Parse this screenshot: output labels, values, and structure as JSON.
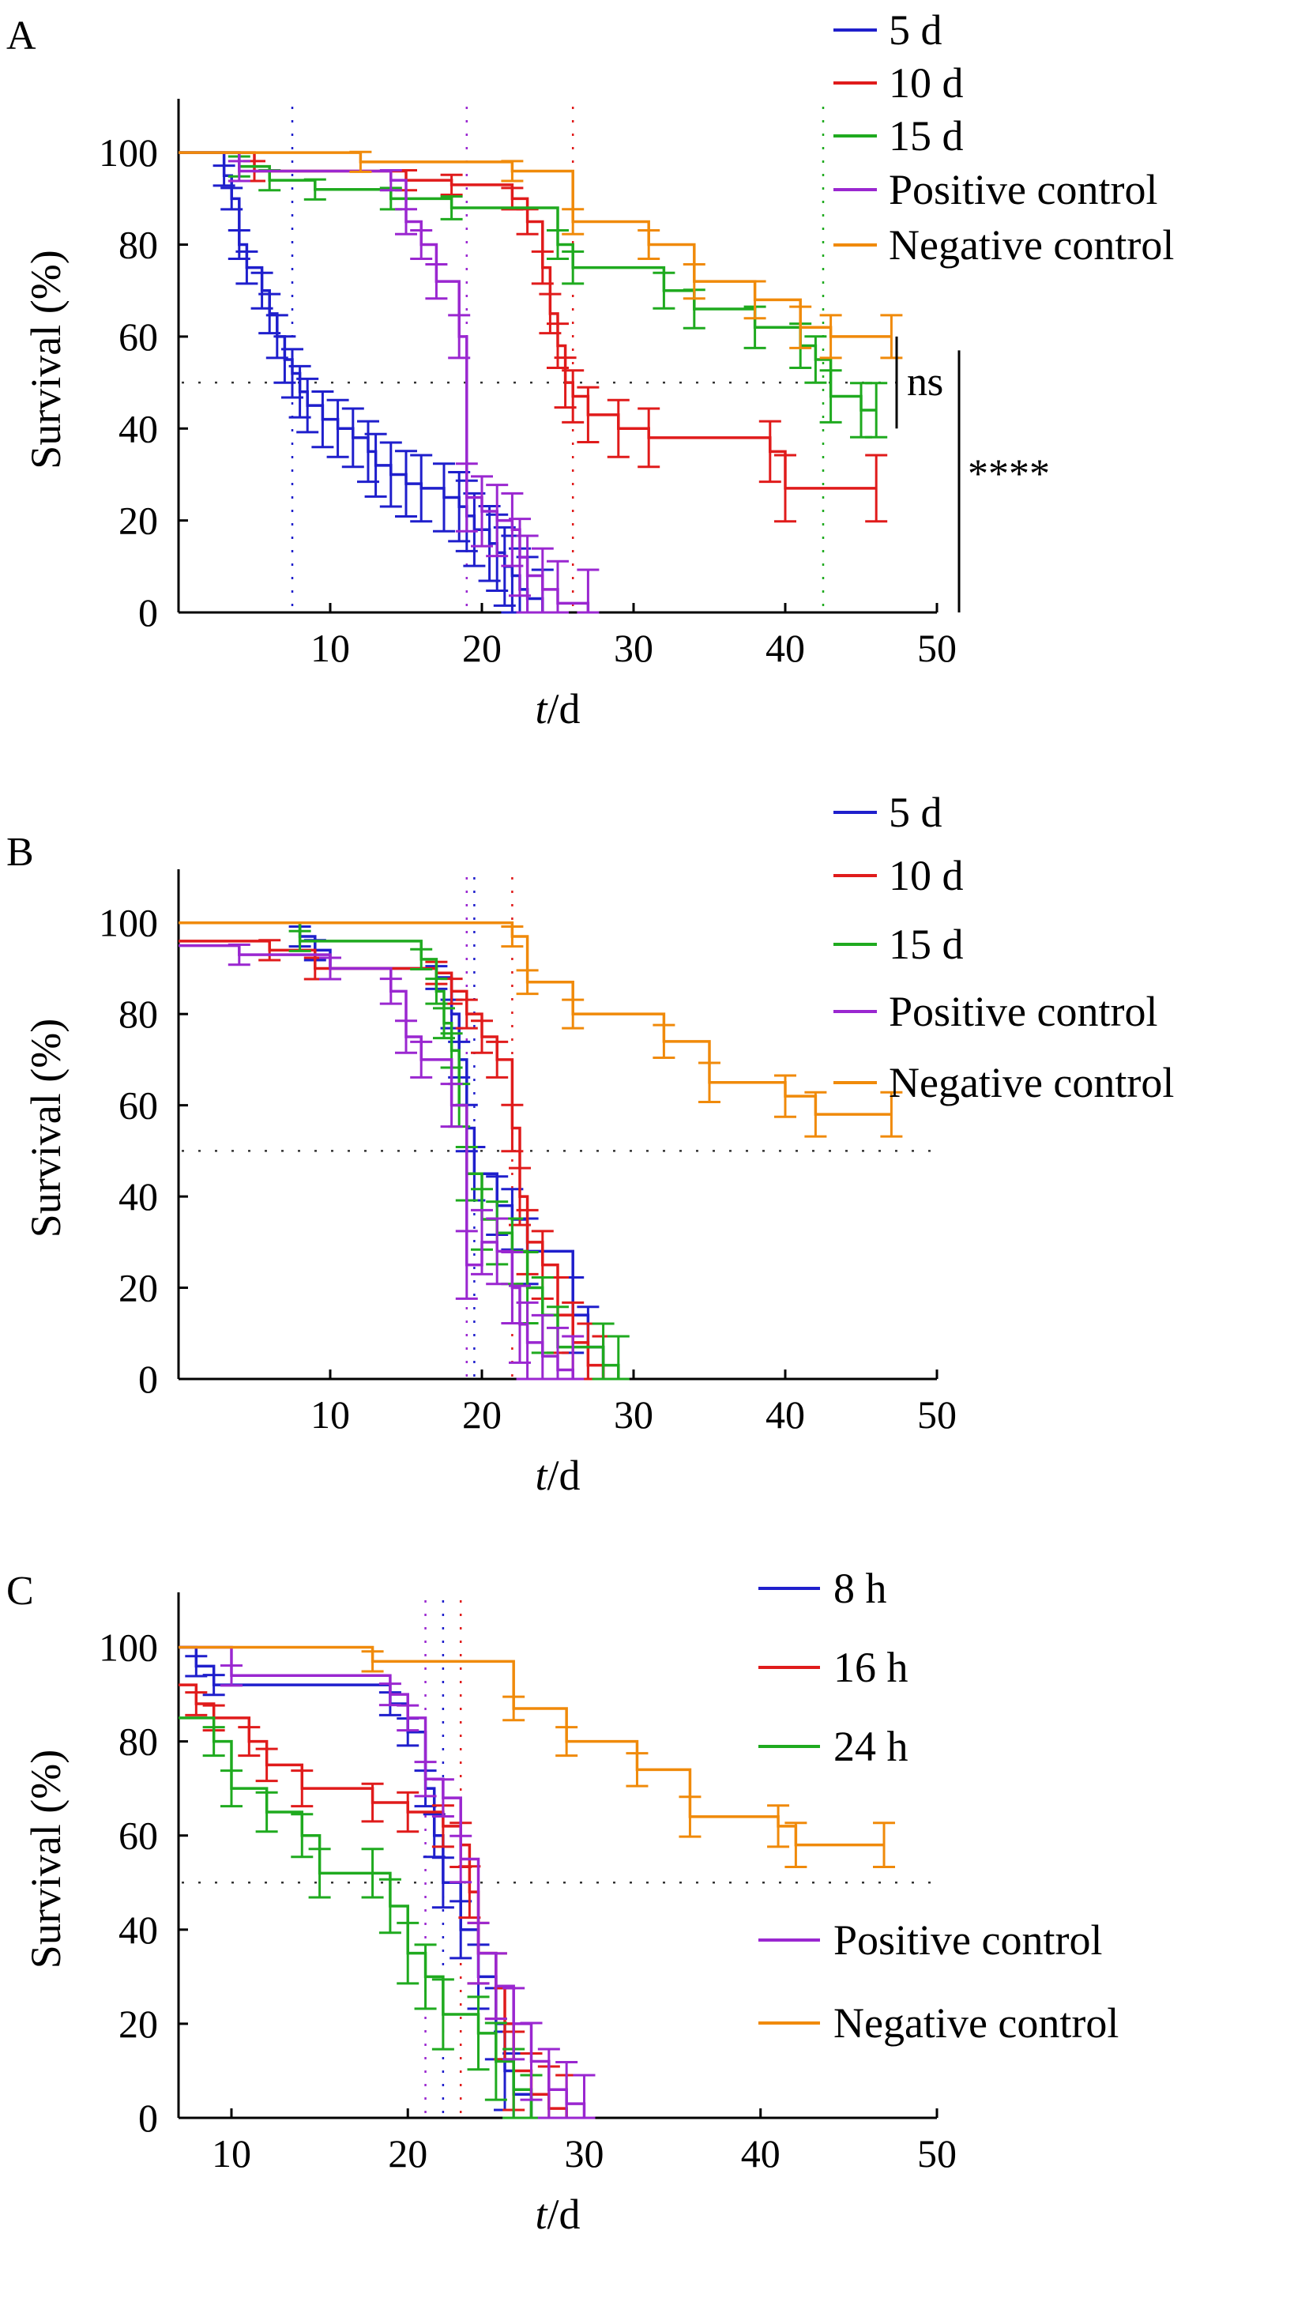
{
  "colors": {
    "5d": "#1f1fcc",
    "10d": "#e01b1b",
    "15d": "#1faa1f",
    "positive": "#9a27d0",
    "negative": "#f08a0a",
    "axis": "#000000",
    "reference": "#333333"
  },
  "chart_data": [
    {
      "panel": "A",
      "type": "line",
      "subtype": "kaplan-meier step",
      "ylabel": "Survival (%)",
      "xlabel_italic": "t",
      "xlabel_unit": "/d",
      "xlim": [
        0,
        50
      ],
      "ylim": [
        0,
        110
      ],
      "xticks": [
        "10",
        "20",
        "30",
        "40",
        "50"
      ],
      "yticks": [
        "0",
        "20",
        "40",
        "60",
        "80",
        "100"
      ],
      "reference_line_y": 50,
      "legend": [
        "5 d",
        "10 d",
        "15 d",
        "Positive control",
        "Negative control"
      ],
      "series": [
        {
          "name": "5 d",
          "color_key": "5d",
          "median": 7.5,
          "points": [
            [
              0,
              100
            ],
            [
              3,
              95
            ],
            [
              3.5,
              90
            ],
            [
              4,
              80
            ],
            [
              4.5,
              75
            ],
            [
              5.5,
              70
            ],
            [
              6,
              65
            ],
            [
              6.5,
              60
            ],
            [
              7,
              55
            ],
            [
              7.5,
              52
            ],
            [
              8,
              48
            ],
            [
              8.5,
              45
            ],
            [
              9.5,
              42
            ],
            [
              10.5,
              40
            ],
            [
              11.5,
              38
            ],
            [
              12.5,
              35
            ],
            [
              13,
              32
            ],
            [
              14,
              30
            ],
            [
              15,
              28
            ],
            [
              16,
              27
            ],
            [
              17.5,
              25
            ],
            [
              18.5,
              23
            ],
            [
              19,
              21
            ],
            [
              19.5,
              18
            ],
            [
              20.5,
              15
            ],
            [
              21,
              13
            ],
            [
              21.5,
              10
            ],
            [
              22,
              8
            ],
            [
              22.5,
              5
            ],
            [
              23,
              3
            ],
            [
              24,
              0
            ]
          ]
        },
        {
          "name": "10 d",
          "color_key": "10d",
          "median": 26,
          "points": [
            [
              0,
              100
            ],
            [
              5,
              96
            ],
            [
              15,
              94
            ],
            [
              18,
              93
            ],
            [
              22,
              90
            ],
            [
              23,
              85
            ],
            [
              24,
              75
            ],
            [
              24.5,
              65
            ],
            [
              25,
              58
            ],
            [
              25.5,
              50
            ],
            [
              26,
              47
            ],
            [
              27,
              43
            ],
            [
              29,
              40
            ],
            [
              31,
              38
            ],
            [
              39,
              35
            ],
            [
              40,
              27
            ],
            [
              46,
              27
            ]
          ]
        },
        {
          "name": "15 d",
          "color_key": "15d",
          "median": 42.5,
          "points": [
            [
              0,
              100
            ],
            [
              4,
              97
            ],
            [
              6,
              94
            ],
            [
              9,
              92
            ],
            [
              14,
              90
            ],
            [
              18,
              88
            ],
            [
              25,
              80
            ],
            [
              26,
              75
            ],
            [
              32,
              70
            ],
            [
              34,
              66
            ],
            [
              38,
              62
            ],
            [
              41,
              58
            ],
            [
              42,
              55
            ],
            [
              43,
              47
            ],
            [
              45,
              44
            ],
            [
              46,
              44
            ]
          ]
        },
        {
          "name": "Positive control",
          "color_key": "positive",
          "median": 19,
          "points": [
            [
              0,
              100
            ],
            [
              4,
              96
            ],
            [
              14,
              94
            ],
            [
              15,
              85
            ],
            [
              16,
              80
            ],
            [
              17,
              72
            ],
            [
              18.5,
              60
            ],
            [
              19,
              25
            ],
            [
              20,
              22
            ],
            [
              21,
              20
            ],
            [
              22,
              18
            ],
            [
              22.5,
              12
            ],
            [
              23,
              8
            ],
            [
              24,
              5
            ],
            [
              25,
              2
            ],
            [
              27,
              0
            ]
          ]
        },
        {
          "name": "Negative control",
          "color_key": "negative",
          "median": null,
          "points": [
            [
              0,
              100
            ],
            [
              12,
              98
            ],
            [
              22,
              96
            ],
            [
              26,
              85
            ],
            [
              31,
              80
            ],
            [
              34,
              72
            ],
            [
              38,
              68
            ],
            [
              41,
              62
            ],
            [
              43,
              60
            ],
            [
              47,
              60
            ]
          ]
        }
      ],
      "medians": [
        7.5,
        19,
        26,
        42.5
      ],
      "significance": [
        {
          "label": "ns",
          "y_from": 60,
          "y_to": 40
        },
        {
          "label": "****",
          "y_from": 57,
          "y_to": 0
        }
      ]
    },
    {
      "panel": "B",
      "type": "line",
      "subtype": "kaplan-meier step",
      "ylabel": "Survival (%)",
      "xlabel_italic": "t",
      "xlabel_unit": "/d",
      "xlim": [
        0,
        50
      ],
      "ylim": [
        0,
        110
      ],
      "xticks": [
        "10",
        "20",
        "30",
        "40",
        "50"
      ],
      "yticks": [
        "0",
        "20",
        "40",
        "60",
        "80",
        "100"
      ],
      "reference_line_y": 50,
      "legend": [
        "5 d",
        "10 d",
        "15 d",
        "Positive control",
        "Negative control"
      ],
      "series": [
        {
          "name": "5 d",
          "color_key": "5d",
          "points": [
            [
              0,
              100
            ],
            [
              8,
              97
            ],
            [
              9,
              94
            ],
            [
              10,
              90
            ],
            [
              17,
              88
            ],
            [
              18,
              80
            ],
            [
              18.5,
              70
            ],
            [
              19,
              55
            ],
            [
              19.5,
              45
            ],
            [
              21,
              38
            ],
            [
              22,
              35
            ],
            [
              23,
              28
            ],
            [
              26,
              14
            ],
            [
              27,
              7
            ],
            [
              28,
              0
            ]
          ]
        },
        {
          "name": "10 d",
          "color_key": "10d",
          "points": [
            [
              0,
              96
            ],
            [
              6,
              94
            ],
            [
              9,
              90
            ],
            [
              17,
              89
            ],
            [
              18,
              85
            ],
            [
              19,
              80
            ],
            [
              20,
              75
            ],
            [
              21,
              70
            ],
            [
              22,
              55
            ],
            [
              22.5,
              40
            ],
            [
              23,
              30
            ],
            [
              24,
              25
            ],
            [
              25,
              14
            ],
            [
              26,
              8
            ],
            [
              27,
              3
            ],
            [
              28,
              0
            ]
          ]
        },
        {
          "name": "15 d",
          "color_key": "15d",
          "points": [
            [
              0,
              100
            ],
            [
              8,
              96
            ],
            [
              16,
              92
            ],
            [
              17,
              85
            ],
            [
              17.5,
              78
            ],
            [
              18,
              72
            ],
            [
              18.5,
              60
            ],
            [
              19,
              45
            ],
            [
              20,
              35
            ],
            [
              21,
              32
            ],
            [
              22,
              28
            ],
            [
              23,
              20
            ],
            [
              24,
              14
            ],
            [
              25,
              7
            ],
            [
              28,
              3
            ],
            [
              29,
              0
            ]
          ]
        },
        {
          "name": "Positive control",
          "color_key": "positive",
          "points": [
            [
              0,
              95
            ],
            [
              4,
              93
            ],
            [
              10,
              90
            ],
            [
              14,
              85
            ],
            [
              15,
              75
            ],
            [
              16,
              70
            ],
            [
              18,
              60
            ],
            [
              19,
              25
            ],
            [
              20,
              30
            ],
            [
              21,
              28
            ],
            [
              22,
              20
            ],
            [
              22.5,
              12
            ],
            [
              23,
              8
            ],
            [
              24,
              5
            ],
            [
              25,
              2
            ],
            [
              26,
              0
            ]
          ]
        },
        {
          "name": "Negative control",
          "color_key": "negative",
          "points": [
            [
              0,
              100
            ],
            [
              9,
              100
            ],
            [
              22,
              97
            ],
            [
              23,
              87
            ],
            [
              26,
              80
            ],
            [
              32,
              74
            ],
            [
              35,
              65
            ],
            [
              40,
              62
            ],
            [
              42,
              58
            ],
            [
              47,
              58
            ]
          ]
        }
      ],
      "medians": [
        19,
        19.5,
        22
      ]
    },
    {
      "panel": "C",
      "type": "line",
      "subtype": "kaplan-meier step",
      "ylabel": "Survival (%)",
      "xlabel_italic": "t",
      "xlabel_unit": "/d",
      "xlim": [
        7,
        50
      ],
      "ylim": [
        0,
        110
      ],
      "xticks": [
        "10",
        "20",
        "30",
        "40",
        "50"
      ],
      "yticks": [
        "0",
        "20",
        "40",
        "60",
        "80",
        "100"
      ],
      "reference_line_y": 50,
      "legend": [
        "8 h",
        "16 h",
        "24 h",
        "Positive control",
        "Negative control"
      ],
      "series": [
        {
          "name": "8 h",
          "color_key": "5d",
          "points": [
            [
              7,
              100
            ],
            [
              8,
              96
            ],
            [
              9,
              92
            ],
            [
              19,
              88
            ],
            [
              20,
              82
            ],
            [
              21,
              70
            ],
            [
              21.5,
              60
            ],
            [
              22,
              50
            ],
            [
              23,
              40
            ],
            [
              24,
              30
            ],
            [
              25,
              20
            ],
            [
              25.5,
              10
            ],
            [
              26,
              5
            ],
            [
              27,
              0
            ]
          ]
        },
        {
          "name": "16 h",
          "color_key": "10d",
          "points": [
            [
              7,
              92
            ],
            [
              8,
              88
            ],
            [
              9,
              85
            ],
            [
              11,
              80
            ],
            [
              12,
              75
            ],
            [
              14,
              70
            ],
            [
              18,
              67
            ],
            [
              20,
              65
            ],
            [
              22,
              62
            ],
            [
              23,
              58
            ],
            [
              23.5,
              48
            ],
            [
              24,
              35
            ],
            [
              25,
              28
            ],
            [
              25.5,
              20
            ],
            [
              26,
              10
            ],
            [
              27,
              5
            ],
            [
              28,
              2
            ],
            [
              29,
              0
            ]
          ]
        },
        {
          "name": "24 h",
          "color_key": "15d",
          "points": [
            [
              7,
              85
            ],
            [
              9,
              80
            ],
            [
              10,
              70
            ],
            [
              12,
              65
            ],
            [
              14,
              60
            ],
            [
              15,
              52
            ],
            [
              18,
              52
            ],
            [
              19,
              45
            ],
            [
              20,
              35
            ],
            [
              21,
              30
            ],
            [
              22,
              22
            ],
            [
              24,
              18
            ],
            [
              25,
              12
            ],
            [
              26,
              6
            ],
            [
              27,
              0
            ]
          ]
        },
        {
          "name": "Positive control",
          "color_key": "positive",
          "points": [
            [
              7,
              100
            ],
            [
              10,
              94
            ],
            [
              19,
              90
            ],
            [
              20,
              85
            ],
            [
              21,
              72
            ],
            [
              22,
              68
            ],
            [
              23,
              55
            ],
            [
              24,
              35
            ],
            [
              25,
              28
            ],
            [
              26,
              20
            ],
            [
              27,
              12
            ],
            [
              28,
              6
            ],
            [
              29,
              3
            ],
            [
              30,
              0
            ]
          ]
        },
        {
          "name": "Negative control",
          "color_key": "negative",
          "points": [
            [
              7,
              100
            ],
            [
              18,
              97
            ],
            [
              26,
              87
            ],
            [
              29,
              80
            ],
            [
              33,
              74
            ],
            [
              36,
              64
            ],
            [
              41,
              62
            ],
            [
              42,
              58
            ],
            [
              47,
              58
            ]
          ]
        }
      ],
      "medians": [
        21,
        22,
        23
      ]
    }
  ]
}
